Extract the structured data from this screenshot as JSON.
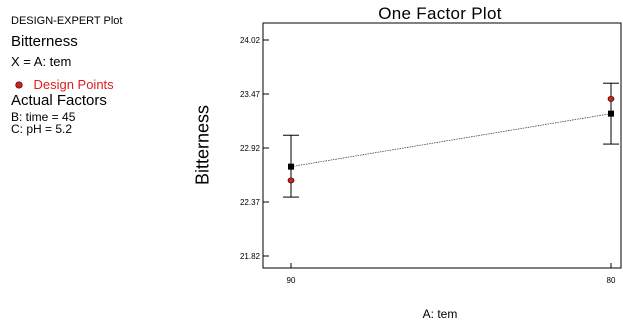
{
  "side_panel": {
    "software": "DESIGN-EXPERT Plot",
    "response": "Bitterness",
    "x_factor": "X = A: tem",
    "design_points_label": "Design Points",
    "actual_factors_heading": "Actual Factors",
    "factors": [
      "B: time = 45",
      "C: pH = 5.2"
    ]
  },
  "colors": {
    "design_point": "#cc2222",
    "design_points_text": "#dd1f1f",
    "mean_marker": "#000000",
    "axis": "#000000"
  },
  "chart_data": {
    "type": "line",
    "title": "One Factor Plot",
    "xlabel": "A: tem",
    "ylabel": "Bitterness",
    "categories": [
      "90",
      "80"
    ],
    "yticks": [
      "21.82",
      "22.37",
      "22.92",
      "23.47",
      "24.02"
    ],
    "ylim": [
      21.82,
      24.02
    ],
    "series": [
      {
        "values": [
          22.73,
          23.27
        ]
      }
    ],
    "error_bars": [
      {
        "low": 22.42,
        "high": 23.05
      },
      {
        "low": 22.96,
        "high": 23.58
      }
    ],
    "design_points": [
      {
        "category": "90",
        "value": 22.59
      },
      {
        "category": "80",
        "value": 23.42
      }
    ],
    "grid": false,
    "legend": "none"
  }
}
